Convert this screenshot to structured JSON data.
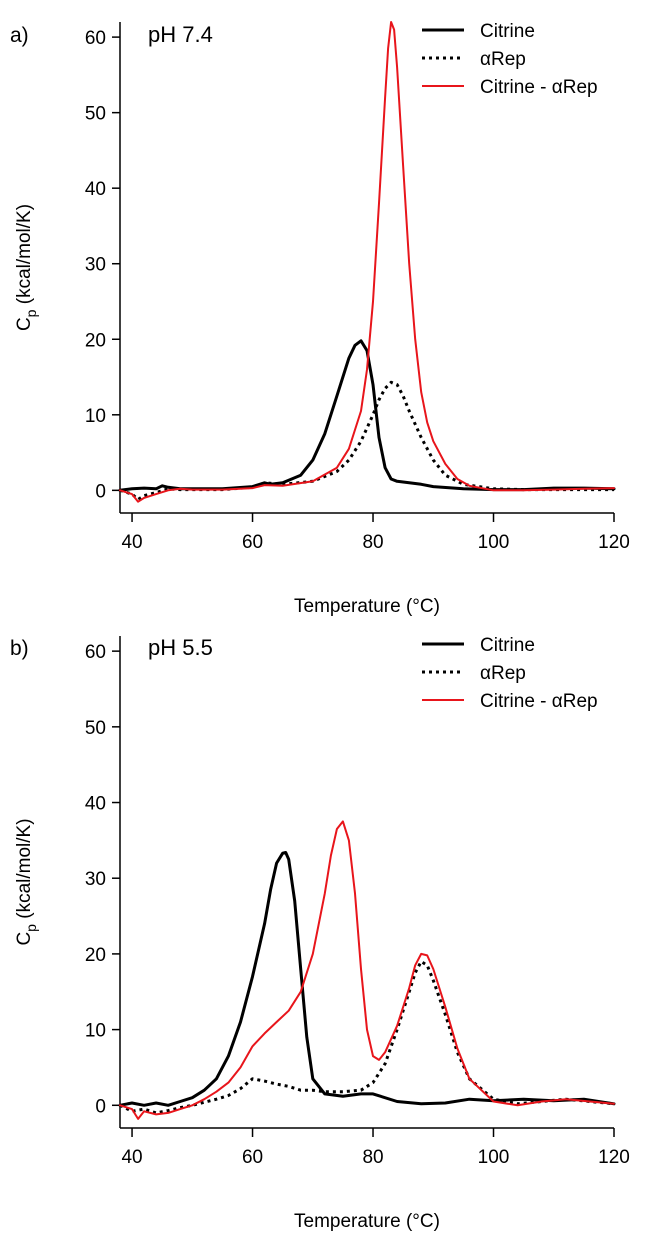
{
  "chart_data": [
    {
      "type": "line",
      "panel_label": "a)",
      "annotation": "pH 7.4",
      "xlabel": "Temperature (°C)",
      "ylabel_main": "C",
      "ylabel_sub": "p",
      "ylabel_rest": " (kcal/mol/K)",
      "xlim": [
        38,
        120
      ],
      "ylim": [
        -3,
        62
      ],
      "xticks": [
        40,
        60,
        80,
        100,
        120
      ],
      "yticks": [
        0,
        10,
        20,
        30,
        40,
        50,
        60
      ],
      "legend_position": "top-right",
      "series": [
        {
          "name": "Citrine",
          "color": "#000000",
          "style": "solid",
          "x": [
            38,
            40,
            42,
            44,
            45,
            46,
            48,
            50,
            55,
            60,
            62,
            63,
            65,
            68,
            70,
            72,
            74,
            76,
            77,
            78,
            79,
            80,
            81,
            82,
            83,
            84,
            86,
            88,
            90,
            95,
            100,
            105,
            110,
            115,
            120
          ],
          "y": [
            0,
            0.2,
            0.3,
            0.2,
            0.6,
            0.4,
            0.2,
            0.2,
            0.2,
            0.5,
            1.0,
            0.8,
            1.0,
            2.0,
            4.0,
            7.5,
            12.5,
            17.5,
            19.2,
            19.8,
            18.5,
            14.0,
            7.0,
            3.0,
            1.5,
            1.2,
            1.0,
            0.8,
            0.5,
            0.2,
            0.1,
            0.1,
            0.3,
            0.3,
            0.2
          ]
        },
        {
          "name": "αRep",
          "color": "#000000",
          "style": "dotted",
          "x": [
            38,
            40,
            41,
            42,
            44,
            46,
            48,
            50,
            55,
            60,
            62,
            65,
            70,
            74,
            76,
            78,
            80,
            81,
            82,
            83,
            84,
            85,
            86,
            88,
            90,
            92,
            95,
            100,
            105,
            110,
            115,
            120
          ],
          "y": [
            0,
            -0.5,
            -1.2,
            -0.7,
            -0.3,
            0.2,
            0.1,
            0.1,
            0.1,
            0.4,
            1.0,
            0.8,
            1.2,
            2.5,
            4.0,
            6.5,
            10.0,
            12.0,
            13.5,
            14.3,
            14.0,
            12.5,
            10.5,
            7.0,
            4.0,
            2.0,
            0.8,
            0.2,
            0.1,
            0.1,
            0.1,
            0.1
          ]
        },
        {
          "name": "Citrine - αRep",
          "color": "#e8151b",
          "style": "solid",
          "x": [
            38,
            40,
            41,
            42,
            44,
            46,
            48,
            50,
            55,
            60,
            62,
            65,
            70,
            74,
            76,
            78,
            79,
            80,
            81,
            82,
            82.5,
            83,
            83.5,
            84,
            85,
            86,
            87,
            88,
            89,
            90,
            92,
            94,
            96,
            100,
            105,
            110,
            115,
            120
          ],
          "y": [
            0,
            -0.5,
            -1.5,
            -1.0,
            -0.5,
            0.0,
            0.2,
            0.1,
            0.1,
            0.3,
            0.7,
            0.6,
            1.2,
            3.0,
            5.5,
            10.5,
            16.0,
            25.0,
            38.0,
            52.0,
            58.5,
            62.0,
            61.0,
            56.0,
            43.0,
            30.0,
            20.0,
            13.0,
            9.0,
            6.5,
            3.5,
            1.5,
            0.6,
            0.0,
            0.0,
            0.1,
            0.2,
            0.3
          ]
        }
      ]
    },
    {
      "type": "line",
      "panel_label": "b)",
      "annotation": "pH 5.5",
      "xlabel": "Temperature (°C)",
      "ylabel_main": "C",
      "ylabel_sub": "p",
      "ylabel_rest": " (kcal/mol/K)",
      "xlim": [
        38,
        120
      ],
      "ylim": [
        -3,
        62
      ],
      "xticks": [
        40,
        60,
        80,
        100,
        120
      ],
      "yticks": [
        0,
        10,
        20,
        30,
        40,
        50,
        60
      ],
      "legend_position": "top-right",
      "series": [
        {
          "name": "Citrine",
          "color": "#000000",
          "style": "solid",
          "x": [
            38,
            40,
            42,
            44,
            46,
            48,
            50,
            52,
            54,
            56,
            58,
            60,
            62,
            63,
            64,
            65,
            65.5,
            66,
            67,
            68,
            69,
            70,
            72,
            75,
            78,
            80,
            84,
            88,
            92,
            96,
            100,
            105,
            110,
            115,
            120
          ],
          "y": [
            0,
            0.3,
            0.0,
            0.3,
            0.0,
            0.5,
            1.0,
            2.0,
            3.5,
            6.5,
            11.0,
            17.0,
            24.0,
            28.5,
            32.0,
            33.3,
            33.4,
            32.5,
            27.0,
            18.0,
            9.0,
            3.5,
            1.5,
            1.2,
            1.5,
            1.5,
            0.5,
            0.2,
            0.3,
            0.8,
            0.6,
            0.8,
            0.6,
            0.8,
            0.2
          ]
        },
        {
          "name": "αRep",
          "color": "#000000",
          "style": "dotted",
          "x": [
            38,
            40,
            42,
            44,
            46,
            48,
            50,
            52,
            54,
            56,
            58,
            60,
            62,
            64,
            66,
            68,
            70,
            72,
            75,
            78,
            80,
            82,
            84,
            86,
            87,
            88,
            89,
            90,
            92,
            94,
            96,
            100,
            104,
            108,
            112,
            116,
            120
          ],
          "y": [
            0,
            -0.8,
            -0.5,
            -1.0,
            -0.7,
            -0.3,
            0.0,
            0.4,
            0.8,
            1.3,
            2.2,
            3.5,
            3.2,
            2.8,
            2.5,
            2.0,
            2.0,
            1.8,
            1.8,
            2.0,
            3.0,
            5.5,
            10.0,
            15.0,
            17.5,
            19.0,
            18.5,
            16.5,
            12.0,
            7.0,
            3.5,
            0.8,
            0.2,
            0.5,
            0.8,
            0.5,
            0.2
          ]
        },
        {
          "name": "Citrine - αRep",
          "color": "#e8151b",
          "style": "solid",
          "x": [
            38,
            40,
            41,
            42,
            44,
            46,
            48,
            50,
            52,
            54,
            56,
            58,
            60,
            62,
            64,
            66,
            68,
            70,
            72,
            73,
            74,
            75,
            76,
            77,
            78,
            79,
            80,
            81,
            82,
            84,
            86,
            87,
            88,
            89,
            90,
            92,
            94,
            96,
            100,
            104,
            108,
            112,
            116,
            120
          ],
          "y": [
            0,
            -0.5,
            -1.8,
            -0.8,
            -1.2,
            -1.0,
            -0.5,
            0.0,
            0.8,
            1.8,
            3.0,
            5.0,
            7.8,
            9.5,
            11.0,
            12.5,
            15.0,
            20.0,
            28.0,
            33.0,
            36.5,
            37.5,
            35.0,
            28.0,
            18.0,
            10.0,
            6.5,
            6.0,
            7.0,
            10.5,
            15.5,
            18.5,
            20.0,
            19.8,
            18.0,
            13.0,
            7.5,
            3.5,
            0.5,
            0.0,
            0.5,
            0.8,
            0.5,
            0.2
          ]
        }
      ]
    }
  ]
}
